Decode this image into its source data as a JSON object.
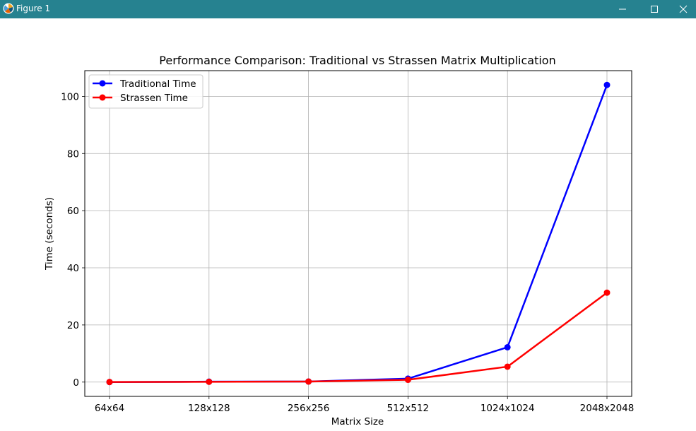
{
  "window": {
    "title": "Figure 1",
    "minimize_icon": "minimize-icon",
    "maximize_icon": "maximize-icon",
    "close_icon": "close-icon",
    "app_icon": "matplotlib-icon"
  },
  "chart_data": {
    "type": "line",
    "title": "Performance Comparison: Traditional vs Strassen Matrix Multiplication",
    "xlabel": "Matrix Size",
    "ylabel": "Time (seconds)",
    "categories": [
      "64x64",
      "128x128",
      "256x256",
      "512x512",
      "1024x1024",
      "2048x2048"
    ],
    "ylim": [
      -5,
      109
    ],
    "yticks": [
      0,
      20,
      40,
      60,
      80,
      100
    ],
    "grid": true,
    "legend_position": "top-left",
    "series": [
      {
        "name": "Traditional Time",
        "color": "#0000ff",
        "values": [
          0.02,
          0.15,
          0.2,
          1.2,
          12.2,
          104.0
        ]
      },
      {
        "name": "Strassen Time",
        "color": "#ff0000",
        "values": [
          0.03,
          0.1,
          0.18,
          0.8,
          5.4,
          31.3
        ]
      }
    ]
  }
}
